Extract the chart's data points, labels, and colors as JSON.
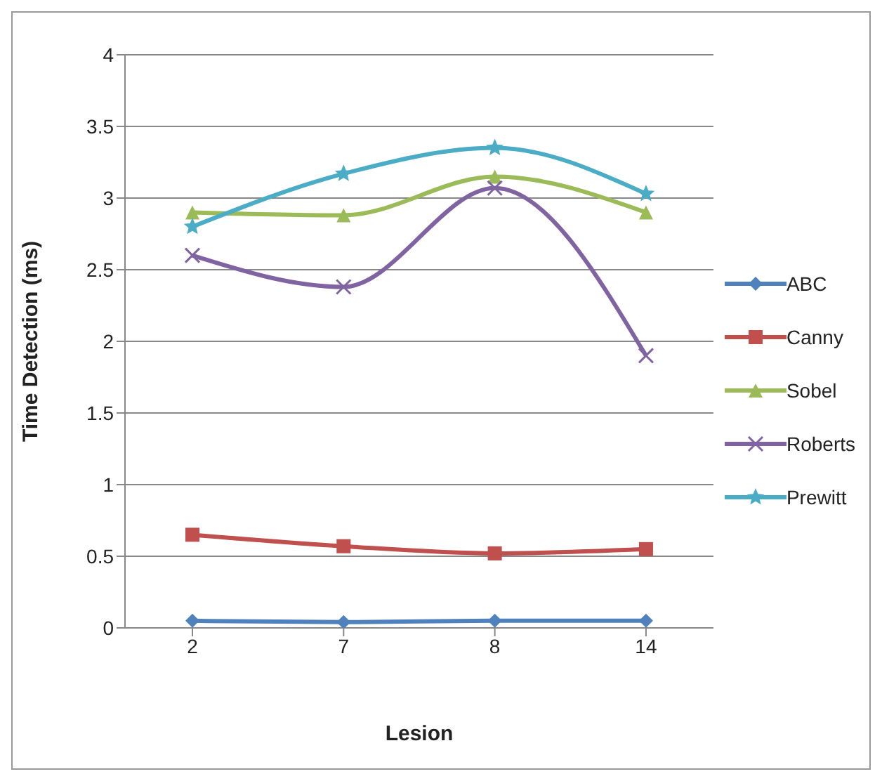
{
  "chart_data": {
    "type": "line",
    "xlabel": "Lesion",
    "ylabel": "Time Detection (ms)",
    "categories": [
      "2",
      "7",
      "8",
      "14"
    ],
    "series": [
      {
        "name": "ABC",
        "color": "#4f81bd",
        "marker": "diamond",
        "values": [
          0.05,
          0.04,
          0.05,
          0.05
        ]
      },
      {
        "name": "Canny",
        "color": "#c0504d",
        "marker": "square",
        "values": [
          0.65,
          0.57,
          0.52,
          0.55
        ]
      },
      {
        "name": "Sobel",
        "color": "#9bbb59",
        "marker": "triangle",
        "values": [
          2.9,
          2.88,
          3.15,
          2.9
        ]
      },
      {
        "name": "Roberts",
        "color": "#8064a2",
        "marker": "cross",
        "values": [
          2.6,
          2.38,
          3.07,
          1.9
        ]
      },
      {
        "name": "Prewitt",
        "color": "#4bacc6",
        "marker": "star",
        "values": [
          2.8,
          3.17,
          3.35,
          3.03
        ]
      }
    ],
    "ylim": [
      0,
      4
    ],
    "yticks": [
      0,
      0.5,
      1,
      1.5,
      2,
      2.5,
      3,
      3.5,
      4
    ],
    "grid": "y",
    "legend": "right"
  }
}
